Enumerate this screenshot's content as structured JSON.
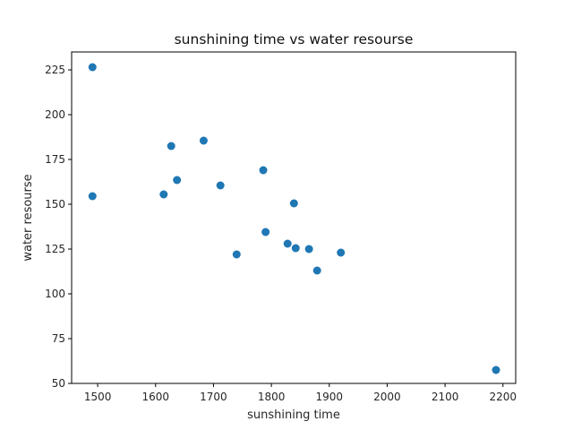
{
  "chart_data": {
    "type": "scatter",
    "title": "sunshining time vs water resourse",
    "xlabel": "sunshining time",
    "ylabel": "water resourse",
    "xlim": [
      1455,
      2222
    ],
    "ylim": [
      50,
      235
    ],
    "xticks": [
      1500,
      1600,
      1700,
      1800,
      1900,
      2000,
      2100,
      2200
    ],
    "yticks": [
      50,
      75,
      100,
      125,
      150,
      175,
      200,
      225
    ],
    "grid": false,
    "color": "#1f77b4",
    "points": [
      {
        "x": 1491,
        "y": 226.5
      },
      {
        "x": 1491,
        "y": 154.5
      },
      {
        "x": 1614,
        "y": 155.5
      },
      {
        "x": 1627,
        "y": 182.5
      },
      {
        "x": 1637,
        "y": 163.5
      },
      {
        "x": 1683,
        "y": 185.5
      },
      {
        "x": 1712,
        "y": 160.5
      },
      {
        "x": 1740,
        "y": 122
      },
      {
        "x": 1786,
        "y": 169
      },
      {
        "x": 1790,
        "y": 134.5
      },
      {
        "x": 1828,
        "y": 128
      },
      {
        "x": 1839,
        "y": 150.5
      },
      {
        "x": 1842,
        "y": 125.5
      },
      {
        "x": 1865,
        "y": 125
      },
      {
        "x": 1879,
        "y": 113
      },
      {
        "x": 1920,
        "y": 123
      },
      {
        "x": 2188,
        "y": 57.5
      }
    ]
  }
}
